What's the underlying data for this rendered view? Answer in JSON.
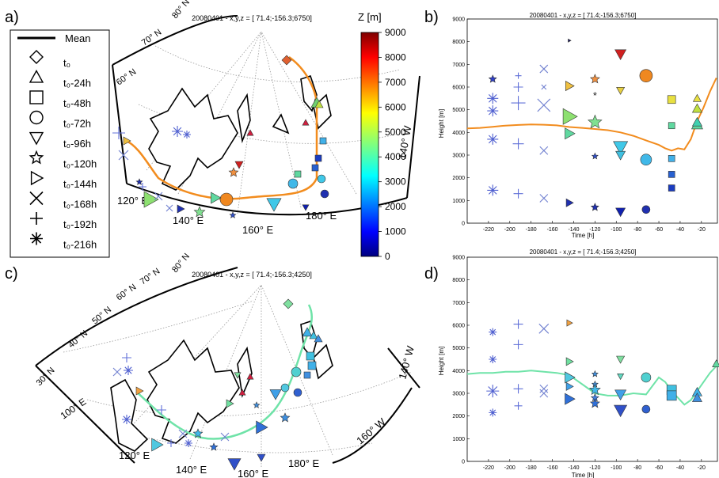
{
  "panel_labels": [
    "a)",
    "b)",
    "c)",
    "d)"
  ],
  "legend": {
    "mean_label": "Mean",
    "items": [
      {
        "label": "t₀",
        "marker": "diamond"
      },
      {
        "label": "t₀-24h",
        "marker": "triangle-up"
      },
      {
        "label": "t₀-48h",
        "marker": "square"
      },
      {
        "label": "t₀-72h",
        "marker": "circle"
      },
      {
        "label": "t₀-96h",
        "marker": "triangle-down"
      },
      {
        "label": "t₀-120h",
        "marker": "star"
      },
      {
        "label": "t₀-144h",
        "marker": "triangle-right"
      },
      {
        "label": "t₀-168h",
        "marker": "x"
      },
      {
        "label": "t₀-192h",
        "marker": "plus"
      },
      {
        "label": "t₀-216h",
        "marker": "asterisk"
      }
    ]
  },
  "colorbar": {
    "title": "Z [m]",
    "ticks": [
      "9000",
      "8000",
      "7000",
      "6000",
      "5000",
      "4000",
      "3000",
      "2000",
      "1000",
      "0"
    ],
    "min": 0,
    "max": 9000
  },
  "maps": {
    "a": {
      "title": "20080401 - x,y,z = [ 71.4;-156.3;6750]",
      "lat_labels": [
        "60° N",
        "70° N",
        "80° N"
      ],
      "lon_labels": [
        "120° E",
        "140° E",
        "160° E",
        "180° E",
        "140° W"
      ],
      "mean_color": "#f28c1e"
    },
    "c": {
      "title": "20080401 - x,y,z = [ 71.4;-156.3;4250]",
      "lat_labels": [
        "30° N",
        "40° N",
        "50° N",
        "60° N",
        "70° N",
        "80° N"
      ],
      "lon_labels": [
        "100° E",
        "120° E",
        "140° E",
        "160° E",
        "180° E",
        "160° W",
        "140° W"
      ],
      "mean_color": "#6fe3a8"
    }
  },
  "chart_data": [
    {
      "type": "scatter",
      "panel": "b",
      "title": "20080401 - x,y,z = [ 71.4;-156.3;6750]",
      "xlabel": "Time [h]",
      "ylabel": "Height [m]",
      "xlim": [
        -240,
        -5
      ],
      "ylim": [
        0,
        9000
      ],
      "xticks": [
        -220,
        -200,
        -180,
        -160,
        -140,
        -120,
        -100,
        -80,
        -60,
        -40,
        -20
      ],
      "yticks": [
        0,
        1000,
        2000,
        3000,
        4000,
        5000,
        6000,
        7000,
        8000,
        9000
      ],
      "mean": {
        "name": "Mean",
        "color": "#f28c1e",
        "x": [
          -240,
          -228,
          -216,
          -204,
          -192,
          -180,
          -168,
          -156,
          -144,
          -132,
          -120,
          -108,
          -96,
          -84,
          -72,
          -60,
          -54,
          -48,
          -42,
          -36,
          -30,
          -24,
          -18,
          -12,
          -6
        ],
        "y": [
          4180,
          4200,
          4250,
          4300,
          4330,
          4350,
          4340,
          4310,
          4240,
          4200,
          4150,
          4100,
          4000,
          3850,
          3650,
          3450,
          3300,
          3200,
          3300,
          3250,
          3700,
          4500,
          5100,
          5800,
          6400
        ]
      },
      "points": [
        {
          "t": -216,
          "z": 6350,
          "m": "star",
          "c": "#3040c8",
          "s": 5
        },
        {
          "t": -216,
          "z": 5500,
          "m": "asterisk",
          "c": "#5060d0",
          "s": 7
        },
        {
          "t": -216,
          "z": 4950,
          "m": "asterisk",
          "c": "#5060d0",
          "s": 7
        },
        {
          "t": -216,
          "z": 3700,
          "m": "asterisk",
          "c": "#5060d0",
          "s": 7
        },
        {
          "t": -216,
          "z": 1450,
          "m": "asterisk",
          "c": "#5060d0",
          "s": 7
        },
        {
          "t": -192,
          "z": 6500,
          "m": "plus",
          "c": "#6070d8",
          "s": 4
        },
        {
          "t": -192,
          "z": 6000,
          "m": "plus",
          "c": "#6070d8",
          "s": 6
        },
        {
          "t": -192,
          "z": 5300,
          "m": "plus",
          "c": "#6070d8",
          "s": 9
        },
        {
          "t": -192,
          "z": 3500,
          "m": "plus",
          "c": "#6070d8",
          "s": 7
        },
        {
          "t": -192,
          "z": 1300,
          "m": "plus",
          "c": "#6070d8",
          "s": 6
        },
        {
          "t": -168,
          "z": 6800,
          "m": "x",
          "c": "#7080d0",
          "s": 5
        },
        {
          "t": -168,
          "z": 6000,
          "m": "x",
          "c": "#7080d0",
          "s": 3
        },
        {
          "t": -168,
          "z": 5200,
          "m": "x",
          "c": "#7080d0",
          "s": 8
        },
        {
          "t": -168,
          "z": 3200,
          "m": "x",
          "c": "#7080d0",
          "s": 5
        },
        {
          "t": -168,
          "z": 1100,
          "m": "x",
          "c": "#7080d0",
          "s": 5
        },
        {
          "t": -144,
          "z": 8050,
          "m": "triangle-right",
          "c": "#1a1a60",
          "s": 2
        },
        {
          "t": -144,
          "z": 6050,
          "m": "triangle-right",
          "c": "#f0c040",
          "s": 6
        },
        {
          "t": -144,
          "z": 4700,
          "m": "triangle-right",
          "c": "#8de070",
          "s": 10
        },
        {
          "t": -144,
          "z": 3950,
          "m": "triangle-right",
          "c": "#60d8a0",
          "s": 7
        },
        {
          "t": -144,
          "z": 900,
          "m": "triangle-right",
          "c": "#2030b0",
          "s": 5
        },
        {
          "t": -120,
          "z": 6350,
          "m": "star",
          "c": "#f09040",
          "s": 6
        },
        {
          "t": -120,
          "z": 5700,
          "m": "star",
          "c": "#c0c0c0",
          "s": 2
        },
        {
          "t": -120,
          "z": 4450,
          "m": "star",
          "c": "#80e090",
          "s": 9
        },
        {
          "t": -120,
          "z": 2950,
          "m": "star",
          "c": "#3050c8",
          "s": 4
        },
        {
          "t": -120,
          "z": 700,
          "m": "star",
          "c": "#2030b0",
          "s": 5
        },
        {
          "t": -96,
          "z": 7450,
          "m": "triangle-down",
          "c": "#d02020",
          "s": 7
        },
        {
          "t": -96,
          "z": 5850,
          "m": "triangle-down",
          "c": "#e8d040",
          "s": 5
        },
        {
          "t": -96,
          "z": 3350,
          "m": "triangle-down",
          "c": "#40c8e8",
          "s": 9
        },
        {
          "t": -96,
          "z": 3000,
          "m": "triangle-down",
          "c": "#40c0e0",
          "s": 6
        },
        {
          "t": -96,
          "z": 500,
          "m": "triangle-down",
          "c": "#1020b0",
          "s": 6
        },
        {
          "t": -72,
          "z": 6500,
          "m": "circle",
          "c": "#f08820",
          "s": 8
        },
        {
          "t": -72,
          "z": 2800,
          "m": "circle",
          "c": "#40b8e8",
          "s": 7
        },
        {
          "t": -72,
          "z": 600,
          "m": "circle",
          "c": "#2030b0",
          "s": 5
        },
        {
          "t": -48,
          "z": 5450,
          "m": "square",
          "c": "#e8e040",
          "s": 5
        },
        {
          "t": -48,
          "z": 4300,
          "m": "square",
          "c": "#60d8a0",
          "s": 4
        },
        {
          "t": -48,
          "z": 2850,
          "m": "square",
          "c": "#40b0e8",
          "s": 4
        },
        {
          "t": -48,
          "z": 2150,
          "m": "square",
          "c": "#2860d0",
          "s": 4
        },
        {
          "t": -48,
          "z": 1550,
          "m": "square",
          "c": "#1a3cc0",
          "s": 4
        },
        {
          "t": -24,
          "z": 5500,
          "m": "triangle-up",
          "c": "#e8e040",
          "s": 5
        },
        {
          "t": -24,
          "z": 5050,
          "m": "triangle-up",
          "c": "#c0e040",
          "s": 6
        },
        {
          "t": -24,
          "z": 4350,
          "m": "triangle-up",
          "c": "#60d8a0",
          "s": 7
        },
        {
          "t": -24,
          "z": 4450,
          "m": "triangle-up",
          "c": "#40d0b0",
          "s": 6
        }
      ]
    },
    {
      "type": "scatter",
      "panel": "d",
      "title": "20080401 - x,y,z = [ 71.4;-156.3;4250]",
      "xlabel": "Time [h]",
      "ylabel": "Height [m]",
      "xlim": [
        -240,
        -5
      ],
      "ylim": [
        0,
        9000
      ],
      "xticks": [
        -220,
        -200,
        -180,
        -160,
        -140,
        -120,
        -100,
        -80,
        -60,
        -40,
        -20
      ],
      "yticks": [
        0,
        1000,
        2000,
        3000,
        4000,
        5000,
        6000,
        7000,
        8000,
        9000
      ],
      "mean": {
        "name": "Mean",
        "color": "#6fe3a8",
        "x": [
          -240,
          -228,
          -216,
          -204,
          -192,
          -180,
          -168,
          -156,
          -144,
          -132,
          -120,
          -108,
          -96,
          -84,
          -72,
          -60,
          -54,
          -48,
          -42,
          -36,
          -30,
          -24,
          -18,
          -12,
          -6
        ],
        "y": [
          3850,
          3900,
          3900,
          3950,
          3950,
          4000,
          3950,
          3900,
          3800,
          3400,
          3000,
          2900,
          2900,
          3000,
          2950,
          3700,
          3500,
          3100,
          2800,
          2500,
          2700,
          3100,
          3500,
          3900,
          4200
        ]
      },
      "points": [
        {
          "t": -216,
          "z": 5700,
          "m": "asterisk",
          "c": "#5060d0",
          "s": 5
        },
        {
          "t": -216,
          "z": 4500,
          "m": "asterisk",
          "c": "#5060d0",
          "s": 5
        },
        {
          "t": -216,
          "z": 3100,
          "m": "asterisk",
          "c": "#5060d0",
          "s": 8
        },
        {
          "t": -216,
          "z": 2150,
          "m": "asterisk",
          "c": "#5060d0",
          "s": 5
        },
        {
          "t": -192,
          "z": 6050,
          "m": "plus",
          "c": "#6070d8",
          "s": 6
        },
        {
          "t": -192,
          "z": 5150,
          "m": "plus",
          "c": "#6070d8",
          "s": 6
        },
        {
          "t": -192,
          "z": 3200,
          "m": "plus",
          "c": "#6070d8",
          "s": 6
        },
        {
          "t": -192,
          "z": 2450,
          "m": "plus",
          "c": "#6070d8",
          "s": 5
        },
        {
          "t": -168,
          "z": 5850,
          "m": "x",
          "c": "#7080d0",
          "s": 6
        },
        {
          "t": -168,
          "z": 3200,
          "m": "x",
          "c": "#7080d0",
          "s": 5
        },
        {
          "t": -168,
          "z": 3000,
          "m": "x",
          "c": "#7080d0",
          "s": 5
        },
        {
          "t": -144,
          "z": 6100,
          "m": "triangle-right",
          "c": "#f0a040",
          "s": 4
        },
        {
          "t": -144,
          "z": 4400,
          "m": "triangle-right",
          "c": "#70e0a0",
          "s": 5
        },
        {
          "t": -144,
          "z": 3700,
          "m": "triangle-right",
          "c": "#50c8e0",
          "s": 7
        },
        {
          "t": -144,
          "z": 3300,
          "m": "triangle-right",
          "c": "#40a0e8",
          "s": 5
        },
        {
          "t": -144,
          "z": 2750,
          "m": "triangle-right",
          "c": "#3070d8",
          "s": 7
        },
        {
          "t": -120,
          "z": 3850,
          "m": "star",
          "c": "#4090e0",
          "s": 4
        },
        {
          "t": -120,
          "z": 3400,
          "m": "star",
          "c": "#4090e0",
          "s": 4
        },
        {
          "t": -120,
          "z": 3150,
          "m": "star",
          "c": "#40b8e8",
          "s": 7
        },
        {
          "t": -120,
          "z": 2800,
          "m": "star",
          "c": "#4080e0",
          "s": 5
        },
        {
          "t": -120,
          "z": 2550,
          "m": "star",
          "c": "#3070d8",
          "s": 6
        },
        {
          "t": -96,
          "z": 4500,
          "m": "triangle-down",
          "c": "#80e0a0",
          "s": 5
        },
        {
          "t": -96,
          "z": 3750,
          "m": "triangle-down",
          "c": "#60d8c0",
          "s": 4
        },
        {
          "t": -96,
          "z": 2950,
          "m": "triangle-down",
          "c": "#40a0e8",
          "s": 7
        },
        {
          "t": -96,
          "z": 2250,
          "m": "triangle-down",
          "c": "#3050c8",
          "s": 8
        },
        {
          "t": -72,
          "z": 3700,
          "m": "circle",
          "c": "#50d0d0",
          "s": 6
        },
        {
          "t": -72,
          "z": 2300,
          "m": "circle",
          "c": "#3060d0",
          "s": 5
        },
        {
          "t": -48,
          "z": 3150,
          "m": "square",
          "c": "#40c0e0",
          "s": 6
        },
        {
          "t": -48,
          "z": 2900,
          "m": "square",
          "c": "#40b0e8",
          "s": 6
        },
        {
          "t": -24,
          "z": 3050,
          "m": "triangle-up",
          "c": "#40b0e8",
          "s": 6
        },
        {
          "t": -24,
          "z": 2800,
          "m": "triangle-up",
          "c": "#4090e0",
          "s": 6
        },
        {
          "t": -6,
          "z": 4300,
          "m": "triangle-up",
          "c": "#60d8a0",
          "s": 5
        }
      ]
    }
  ]
}
